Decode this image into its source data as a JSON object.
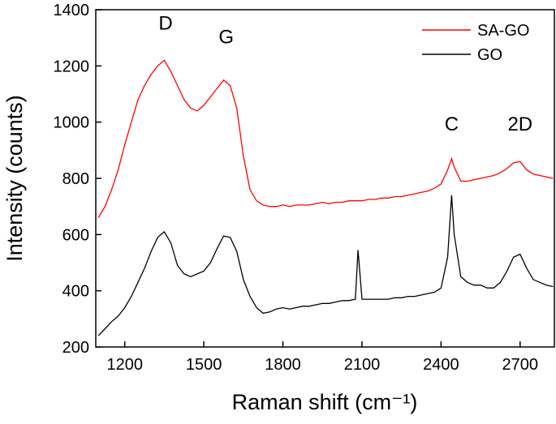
{
  "chart_data": {
    "type": "line",
    "xlabel": "Raman shift (cm⁻¹)",
    "ylabel": "Intensity (counts)",
    "x": [
      1100,
      1125,
      1150,
      1175,
      1200,
      1225,
      1250,
      1275,
      1300,
      1325,
      1350,
      1375,
      1400,
      1425,
      1450,
      1475,
      1500,
      1525,
      1550,
      1575,
      1600,
      1625,
      1650,
      1675,
      1700,
      1725,
      1750,
      1775,
      1800,
      1825,
      1850,
      1875,
      1900,
      1925,
      1950,
      1975,
      2000,
      2025,
      2050,
      2075,
      2085,
      2100,
      2125,
      2150,
      2175,
      2200,
      2225,
      2250,
      2275,
      2300,
      2325,
      2350,
      2375,
      2400,
      2425,
      2440,
      2450,
      2475,
      2500,
      2525,
      2550,
      2575,
      2600,
      2625,
      2650,
      2675,
      2700,
      2725,
      2750,
      2775,
      2800,
      2825
    ],
    "series": [
      {
        "name": "SA-GO",
        "color": "#ff0000",
        "values": [
          660,
          700,
          760,
          830,
          920,
          1000,
          1080,
          1130,
          1170,
          1200,
          1220,
          1180,
          1130,
          1080,
          1050,
          1040,
          1060,
          1090,
          1120,
          1150,
          1130,
          1050,
          880,
          760,
          720,
          705,
          700,
          700,
          705,
          700,
          705,
          705,
          705,
          710,
          715,
          710,
          715,
          715,
          720,
          720,
          720,
          720,
          725,
          725,
          730,
          730,
          735,
          735,
          740,
          745,
          750,
          755,
          765,
          780,
          830,
          870,
          840,
          790,
          790,
          795,
          800,
          805,
          810,
          820,
          835,
          855,
          860,
          830,
          815,
          810,
          805,
          800
        ]
      },
      {
        "name": "GO",
        "color": "#000000",
        "values": [
          240,
          265,
          290,
          310,
          340,
          380,
          430,
          480,
          540,
          590,
          610,
          570,
          490,
          460,
          450,
          460,
          470,
          500,
          550,
          595,
          590,
          540,
          440,
          380,
          340,
          320,
          325,
          335,
          340,
          335,
          340,
          345,
          345,
          350,
          355,
          355,
          360,
          365,
          365,
          370,
          545,
          370,
          370,
          370,
          370,
          370,
          375,
          375,
          380,
          380,
          385,
          390,
          395,
          410,
          520,
          740,
          600,
          450,
          430,
          420,
          420,
          410,
          410,
          430,
          470,
          520,
          530,
          480,
          440,
          430,
          420,
          415
        ]
      }
    ],
    "annotations": [
      "D",
      "G",
      "C",
      "2D"
    ],
    "xlim": [
      1090,
      2830
    ],
    "ylim": [
      200,
      1400
    ],
    "xticks": [
      1200,
      1500,
      1800,
      2100,
      2400,
      2700
    ],
    "yticks": [
      200,
      400,
      600,
      800,
      1000,
      1200,
      1400
    ],
    "legend": "upper right"
  }
}
